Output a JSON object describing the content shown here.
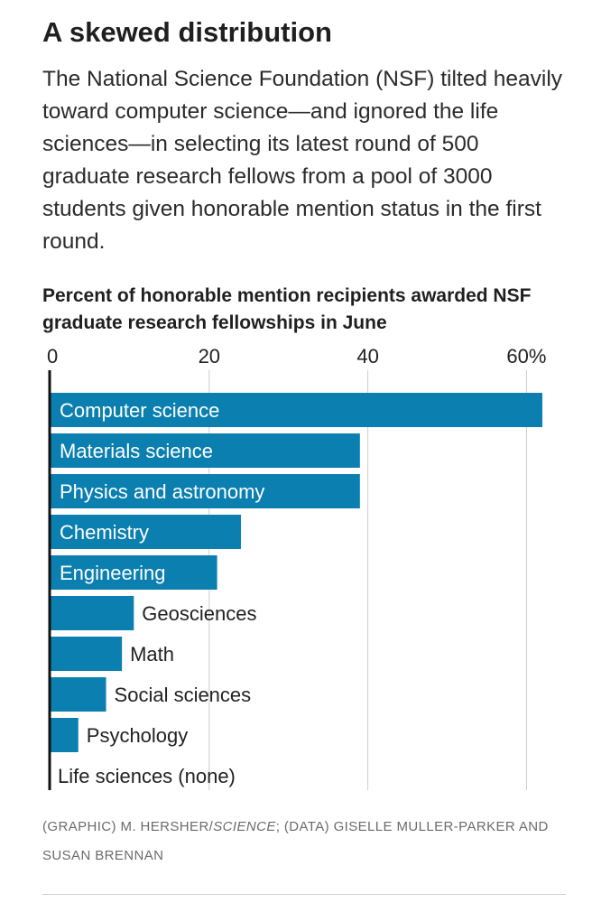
{
  "title": "A skewed distribution",
  "description": "The National Science Foundation (NSF) tilted heavily toward computer science—and ignored the life sciences—in selecting its latest round of 500 graduate research fellows from a pool of 3000 students given honorable mention status in the first round.",
  "credit": {
    "prefix": "(GRAPHIC) M. HERSHER/",
    "italic": "SCIENCE",
    "suffix": "; (DATA) GISELLE MULLER-PARKER AND SUSAN BRENNAN"
  },
  "colors": {
    "bar": "#0a7fb0",
    "gridline": "#cccccc",
    "axis": "#111111"
  },
  "chart_data": {
    "type": "bar",
    "orientation": "horizontal",
    "title": "Percent of honorable mention recipients awarded NSF graduate research fellowships in June",
    "categories": [
      "Computer science",
      "Materials science",
      "Physics and astronomy",
      "Chemistry",
      "Engineering",
      "Geosciences",
      "Math",
      "Social sciences",
      "Psychology",
      "Life sciences (none)"
    ],
    "values": [
      62,
      39,
      39,
      24,
      21,
      10.5,
      9,
      7,
      3.5,
      0
    ],
    "xlim": [
      0,
      62
    ],
    "xticks": [
      0,
      20,
      40,
      60
    ],
    "xtick_labels": [
      "0",
      "20",
      "40",
      "60%"
    ],
    "grid": true,
    "axis_position": "top"
  }
}
